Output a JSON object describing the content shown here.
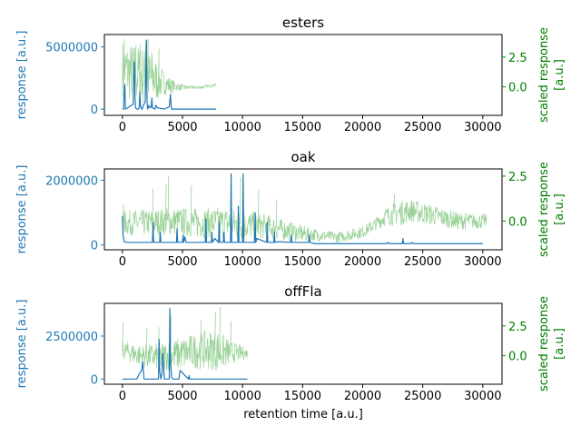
{
  "colors": {
    "primary": "#1f77b4",
    "secondary": "#98d196",
    "secondary_spike": "#3a8f3a",
    "secondary_text": "#008000",
    "axis": "#000000"
  },
  "chart_data": [
    {
      "type": "line",
      "title": "esters",
      "xlabel": "",
      "ylabel": "response [a.u.]",
      "y2label": "scaled response\n[a.u.]",
      "xlim": [
        -1500,
        31600
      ],
      "ylim": [
        -500000,
        6000000
      ],
      "y2lim": [
        -2.4,
        4.4
      ],
      "xticks": [
        0,
        5000,
        10000,
        15000,
        20000,
        25000,
        30000
      ],
      "xtick_labels": [
        "0",
        "5000",
        "10000",
        "15000",
        "20000",
        "25000",
        "30000"
      ],
      "yticks": [
        0,
        5000000
      ],
      "ytick_labels": [
        "0",
        "5000000"
      ],
      "y2ticks": [
        2.5,
        0.0
      ],
      "y2tick_labels": [
        "2.5",
        "0.0"
      ],
      "series": [
        {
          "axis": "left",
          "x": [
            0,
            100,
            150,
            200,
            250,
            600,
            900,
            950,
            1000,
            1050,
            1100,
            1200,
            1300,
            1400,
            1450,
            1500,
            1600,
            1650,
            1700,
            1900,
            2000,
            2050,
            2100,
            2200,
            2300,
            2400,
            2450,
            2500,
            2700,
            2800,
            2900,
            3000,
            3500,
            3900,
            4000,
            4050,
            4100,
            4500,
            6000,
            7700,
            7800
          ],
          "y": [
            0,
            0,
            1600000,
            2000000,
            0,
            200000,
            400000,
            3500000,
            3800000,
            800000,
            100000,
            0,
            0,
            100000,
            1400000,
            300000,
            0,
            0,
            200000,
            600000,
            5500000,
            600000,
            0,
            300000,
            100000,
            200000,
            900000,
            100000,
            0,
            300000,
            100000,
            100000,
            0,
            200000,
            1200000,
            300000,
            0,
            0,
            0,
            0,
            0
          ]
        },
        {
          "axis": "right",
          "style": "noisy-band",
          "x_range": [
            0,
            7800
          ],
          "baseline_points": [
            [
              0,
              1.6
            ],
            [
              500,
              1.3
            ],
            [
              1500,
              1.0
            ],
            [
              3000,
              0.5
            ],
            [
              4000,
              0.1
            ],
            [
              5000,
              -0.05
            ],
            [
              6500,
              -0.05
            ],
            [
              7800,
              0.15
            ]
          ],
          "noise_points": [
            [
              0,
              2.4
            ],
            [
              1500,
              2.6
            ],
            [
              2500,
              2.2
            ],
            [
              3500,
              1.0
            ],
            [
              4500,
              0.35
            ],
            [
              5500,
              0.15
            ],
            [
              7800,
              0.1
            ]
          ],
          "spikes": [
            [
              50,
              -0.1
            ],
            [
              70,
              0.3
            ],
            [
              120,
              4.0
            ],
            [
              950,
              3.1
            ],
            [
              1080,
              3.5
            ],
            [
              1450,
              3.6
            ],
            [
              1900,
              4.0
            ],
            [
              2000,
              4.0
            ],
            [
              2100,
              4.0
            ],
            [
              2400,
              2.9
            ],
            [
              2600,
              1.3
            ],
            [
              3000,
              3.2
            ],
            [
              3900,
              0.5
            ]
          ]
        }
      ]
    },
    {
      "type": "line",
      "title": "oak",
      "xlabel": "",
      "ylabel": "response [a.u.]",
      "y2label": "scaled response\n[a.u.]",
      "xlim": [
        -1500,
        31600
      ],
      "ylim": [
        -150000,
        2350000
      ],
      "y2lim": [
        -1.6,
        2.9
      ],
      "xticks": [
        0,
        5000,
        10000,
        15000,
        20000,
        25000,
        30000
      ],
      "xtick_labels": [
        "0",
        "5000",
        "10000",
        "15000",
        "20000",
        "25000",
        "30000"
      ],
      "yticks": [
        0,
        2000000
      ],
      "ytick_labels": [
        "0",
        "2000000"
      ],
      "y2ticks": [
        2.5,
        0.0
      ],
      "y2tick_labels": [
        "2.5",
        "0.0"
      ],
      "series": [
        {
          "axis": "left",
          "x": [
            0,
            50,
            150,
            400,
            2500,
            2550,
            2600,
            3100,
            3150,
            3200,
            3600,
            4500,
            4550,
            4600,
            5000,
            5050,
            5100,
            5200,
            5300,
            6900,
            6950,
            7000,
            7400,
            7450,
            7500,
            7700,
            8000,
            8050,
            8100,
            8400,
            8450,
            8500,
            9000,
            9050,
            9100,
            9600,
            9650,
            9700,
            10000,
            10050,
            10100,
            11000,
            11050,
            11100,
            11200,
            12000,
            12050,
            12100,
            12600,
            12650,
            12700,
            13000,
            14000,
            14050,
            14100,
            15500,
            15550,
            15600,
            16000,
            22000,
            22100,
            22200,
            23300,
            23350,
            23400,
            24000,
            24100,
            24200,
            30000
          ],
          "y": [
            900000,
            300000,
            100000,
            80000,
            80000,
            700000,
            80000,
            80000,
            400000,
            80000,
            80000,
            80000,
            500000,
            80000,
            80000,
            300000,
            80000,
            250000,
            80000,
            80000,
            800000,
            80000,
            80000,
            400000,
            80000,
            200000,
            80000,
            700000,
            80000,
            80000,
            400000,
            80000,
            80000,
            2200000,
            80000,
            80000,
            1200000,
            80000,
            80000,
            2200000,
            80000,
            80000,
            1000000,
            80000,
            200000,
            80000,
            700000,
            80000,
            80000,
            400000,
            80000,
            100000,
            80000,
            300000,
            80000,
            80000,
            300000,
            80000,
            40000,
            40000,
            80000,
            40000,
            40000,
            200000,
            40000,
            40000,
            80000,
            40000,
            40000
          ]
        },
        {
          "axis": "right",
          "style": "noisy-band",
          "x_range": [
            0,
            30300
          ],
          "baseline_points": [
            [
              0,
              -0.1
            ],
            [
              2000,
              -0.1
            ],
            [
              4000,
              0.0
            ],
            [
              6000,
              -0.1
            ],
            [
              8000,
              -0.1
            ],
            [
              10000,
              -0.2
            ],
            [
              12000,
              -0.3
            ],
            [
              15000,
              -0.7
            ],
            [
              18000,
              -0.9
            ],
            [
              20000,
              -0.6
            ],
            [
              21000,
              -0.2
            ],
            [
              22000,
              0.3
            ],
            [
              24000,
              0.6
            ],
            [
              26000,
              0.3
            ],
            [
              28000,
              0.0
            ],
            [
              30300,
              0.0
            ]
          ],
          "noise_points": [
            [
              0,
              0.7
            ],
            [
              9000,
              0.9
            ],
            [
              12000,
              0.7
            ],
            [
              17000,
              0.3
            ],
            [
              21000,
              0.35
            ],
            [
              23000,
              0.7
            ],
            [
              30300,
              0.4
            ]
          ],
          "spikes": [
            [
              50,
              0.9
            ],
            [
              2500,
              1.8
            ],
            [
              3600,
              2.1
            ],
            [
              3800,
              2.5
            ],
            [
              5700,
              2.0
            ],
            [
              9800,
              2.4
            ],
            [
              11300,
              1.7
            ],
            [
              12800,
              1.2
            ],
            [
              22600,
              1.5
            ],
            [
              24200,
              0.9
            ]
          ]
        }
      ]
    },
    {
      "type": "line",
      "title": "offFla",
      "xlabel": "retention time [a.u.]",
      "ylabel": "response [a.u.]",
      "y2label": "scaled response\n[a.u.]",
      "xlim": [
        -1500,
        31600
      ],
      "ylim": [
        -300000,
        4400000
      ],
      "y2lim": [
        -2.4,
        4.4
      ],
      "xticks": [
        0,
        5000,
        10000,
        15000,
        20000,
        25000,
        30000
      ],
      "xtick_labels": [
        "0",
        "5000",
        "10000",
        "15000",
        "20000",
        "25000",
        "30000"
      ],
      "yticks": [
        0,
        2500000
      ],
      "ytick_labels": [
        "0",
        "2500000"
      ],
      "y2ticks": [
        2.5,
        0.0
      ],
      "y2tick_labels": [
        "2.5",
        "0.0"
      ],
      "series": [
        {
          "axis": "left",
          "x": [
            0,
            100,
            1200,
            1400,
            1600,
            1700,
            1800,
            2500,
            3000,
            3050,
            3100,
            3200,
            3300,
            3350,
            3500,
            3900,
            3950,
            4000,
            4100,
            4200,
            4700,
            4800,
            5500,
            5550,
            5600,
            6500,
            10400
          ],
          "y": [
            0,
            0,
            0,
            300000,
            500000,
            1000000,
            0,
            0,
            0,
            2300000,
            500000,
            0,
            300000,
            1500000,
            0,
            0,
            4100000,
            1000000,
            100000,
            0,
            0,
            500000,
            0,
            200000,
            0,
            0,
            0
          ]
        },
        {
          "axis": "right",
          "style": "noisy-band",
          "x_range": [
            0,
            10400
          ],
          "baseline_points": [
            [
              0,
              0.5
            ],
            [
              1500,
              0.0
            ],
            [
              3000,
              -0.1
            ],
            [
              4500,
              0.1
            ],
            [
              6000,
              0.4
            ],
            [
              7500,
              0.5
            ],
            [
              8500,
              0.3
            ],
            [
              10400,
              0.2
            ]
          ],
          "noise_points": [
            [
              0,
              0.8
            ],
            [
              2000,
              1.0
            ],
            [
              4000,
              1.3
            ],
            [
              6000,
              1.5
            ],
            [
              8000,
              1.8
            ],
            [
              9000,
              1.0
            ],
            [
              10400,
              0.4
            ]
          ],
          "spikes": [
            [
              0,
              2.8
            ],
            [
              2000,
              2.3
            ],
            [
              3000,
              2.4
            ],
            [
              4000,
              3.4
            ],
            [
              6500,
              3.0
            ],
            [
              7700,
              3.7
            ],
            [
              8100,
              4.1
            ],
            [
              9000,
              2.9
            ]
          ]
        }
      ]
    }
  ]
}
